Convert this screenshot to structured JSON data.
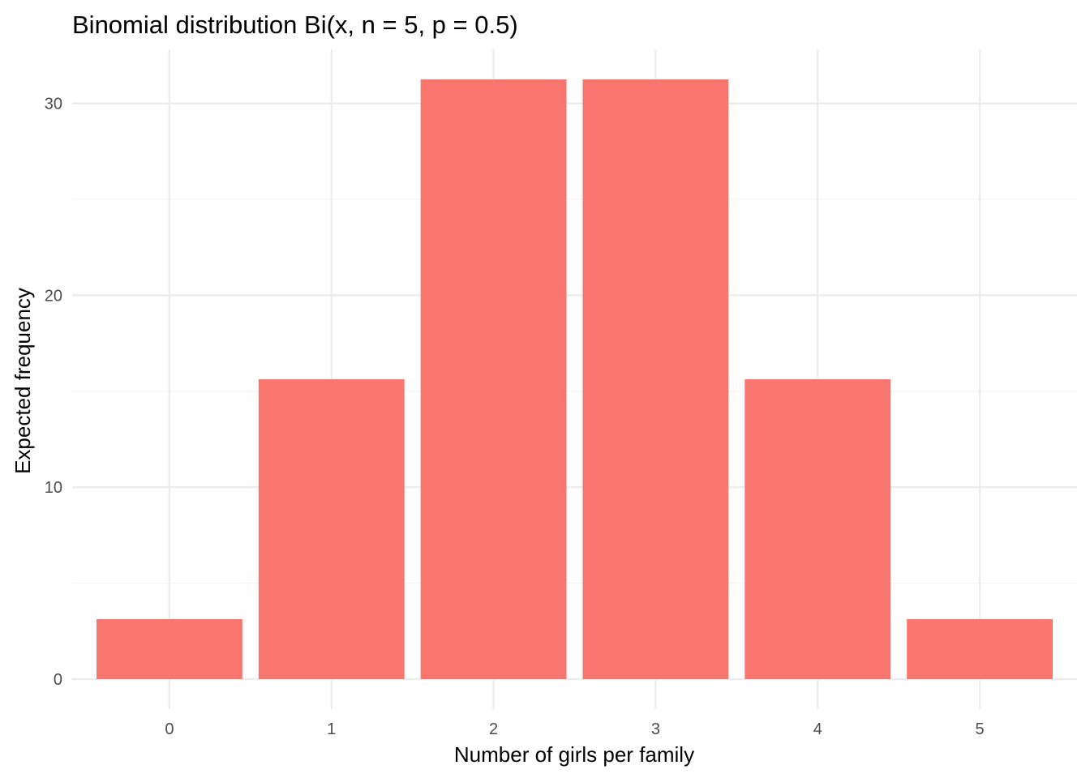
{
  "chart_data": {
    "type": "bar",
    "title": "Binomial distribution Bi(x, n = 5, p = 0.5)",
    "xlabel": "Number of girls per family",
    "ylabel": "Expected frequency",
    "categories": [
      "0",
      "1",
      "2",
      "3",
      "4",
      "5"
    ],
    "values": [
      3.125,
      15.625,
      31.25,
      31.25,
      15.625,
      3.125
    ],
    "ylim": [
      -1.5625,
      32.8125
    ],
    "yticks": [
      0,
      10,
      20,
      30
    ],
    "yticks_minor": [
      5,
      15,
      25
    ],
    "yticklabels": [
      "0",
      "10",
      "20",
      "30"
    ],
    "bar_color": "#F8766D",
    "grid_major_color": "#EBEBEB",
    "grid_minor_color": "#F3F3F3",
    "grid": true,
    "legend": "none"
  }
}
